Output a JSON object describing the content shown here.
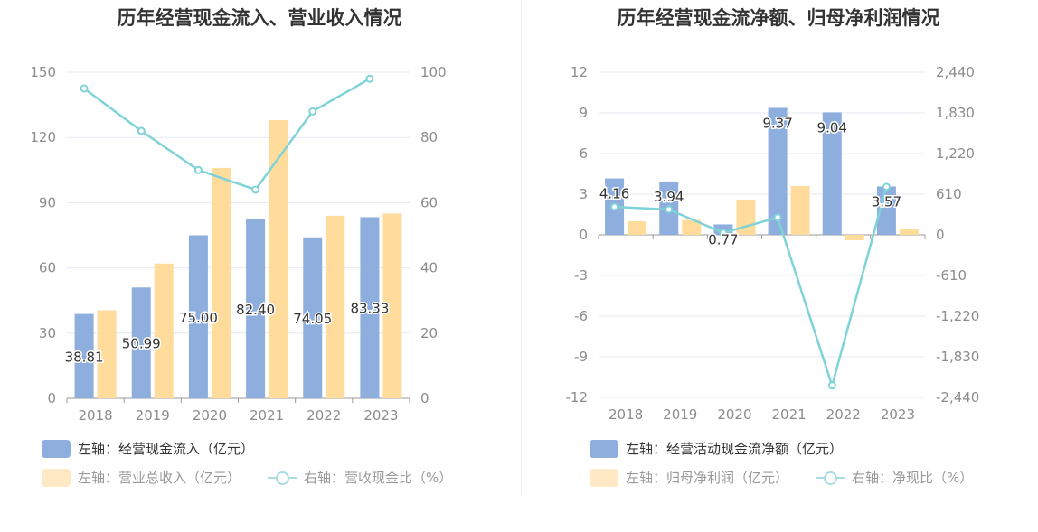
{
  "colors": {
    "bar1": "#8eaedd",
    "bar2": "#ffdb9c",
    "line": "#7fd3d8",
    "axis": "#8c8c8c",
    "grid": "#e6e9f2"
  },
  "chart_data": [
    {
      "type": "bar",
      "title": "历年经营现金流入、营业收入情况",
      "categories": [
        "2018",
        "2019",
        "2020",
        "2021",
        "2022",
        "2023"
      ],
      "y_left_ticks": [
        "150",
        "120",
        "90",
        "60",
        "30",
        "0"
      ],
      "y_right_ticks": [
        "100",
        "80",
        "60",
        "40",
        "20",
        "0"
      ],
      "ylim_left": [
        0,
        150
      ],
      "ylim_right": [
        0,
        100
      ],
      "series": [
        {
          "name": "左轴：经营现金流入（亿元）",
          "type": "bar",
          "axis": "left",
          "values": [
            38.81,
            50.99,
            75.0,
            82.4,
            74.05,
            83.33
          ],
          "labels": [
            "38.81",
            "50.99",
            "75.00",
            "82.40",
            "74.05",
            "83.33"
          ]
        },
        {
          "name": "左轴：营业总收入（亿元）",
          "type": "bar",
          "axis": "left",
          "values": [
            40.5,
            62,
            106,
            128,
            84,
            85
          ]
        },
        {
          "name": "右轴：营收现金比（%）",
          "type": "line",
          "axis": "right",
          "values": [
            95,
            82,
            70,
            64,
            88,
            98
          ]
        }
      ]
    },
    {
      "type": "bar",
      "title": "历年经营现金流净额、归母净利润情况",
      "categories": [
        "2018",
        "2019",
        "2020",
        "2021",
        "2022",
        "2023"
      ],
      "y_left_ticks": [
        "12",
        "9",
        "6",
        "3",
        "0",
        "-3",
        "-6",
        "-9",
        "-12"
      ],
      "y_right_ticks": [
        "2,440",
        "1,830",
        "1,220",
        "610",
        "0",
        "-610",
        "-1,220",
        "-1,830",
        "-2,440"
      ],
      "ylim_left": [
        -12,
        12
      ],
      "ylim_right": [
        -2440,
        2440
      ],
      "series": [
        {
          "name": "左轴：经营活动现金流净额（亿元）",
          "type": "bar",
          "axis": "left",
          "values": [
            4.16,
            3.94,
            0.77,
            9.37,
            9.04,
            3.57
          ],
          "labels": [
            "4.16",
            "3.94",
            "0.77",
            "9.37",
            "9.04",
            "3.57"
          ]
        },
        {
          "name": "左轴：归母净利润（亿元）",
          "type": "bar",
          "axis": "left",
          "values": [
            1.0,
            1.1,
            2.6,
            3.6,
            -0.4,
            0.45
          ]
        },
        {
          "name": "右轴：净现比（%）",
          "type": "line",
          "axis": "right",
          "values": [
            420,
            380,
            30,
            260,
            -2260,
            720
          ]
        }
      ]
    }
  ]
}
